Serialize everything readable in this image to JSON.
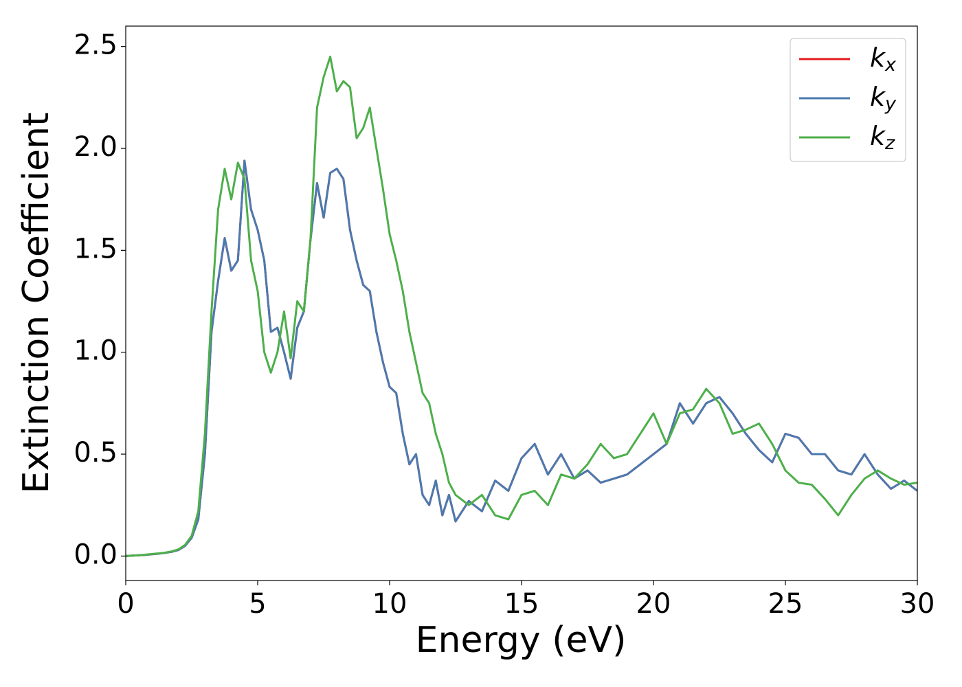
{
  "chart_data": {
    "type": "line",
    "xlabel": "Energy (eV)",
    "ylabel": "Extinction Coefficient",
    "x": [
      0,
      0.25,
      0.5,
      0.75,
      1,
      1.25,
      1.5,
      1.75,
      2,
      2.25,
      2.5,
      2.75,
      3,
      3.25,
      3.5,
      3.75,
      4,
      4.25,
      4.5,
      4.75,
      5,
      5.25,
      5.5,
      5.75,
      6,
      6.25,
      6.5,
      6.75,
      7,
      7.25,
      7.5,
      7.75,
      8,
      8.25,
      8.5,
      8.75,
      9,
      9.25,
      9.5,
      9.75,
      10,
      10.25,
      10.5,
      10.75,
      11,
      11.25,
      11.5,
      11.75,
      12,
      12.25,
      12.5,
      13,
      13.5,
      14,
      14.5,
      15,
      15.5,
      16,
      16.5,
      17,
      17.5,
      18,
      18.5,
      19,
      19.5,
      20,
      20.5,
      21,
      21.5,
      22,
      22.5,
      23,
      23.5,
      24,
      24.5,
      25,
      25.5,
      26,
      26.5,
      27,
      27.5,
      28,
      28.5,
      29,
      29.5,
      30
    ],
    "series": [
      {
        "name": "kx",
        "color": "#e41a1c",
        "values": [
          0,
          0.002,
          0.004,
          0.006,
          0.009,
          0.012,
          0.016,
          0.021,
          0.03,
          0.05,
          0.09,
          0.18,
          0.5,
          1.1,
          1.35,
          1.56,
          1.4,
          1.45,
          1.94,
          1.7,
          1.6,
          1.45,
          1.1,
          1.12,
          1.0,
          0.87,
          1.12,
          1.2,
          1.55,
          1.83,
          1.66,
          1.88,
          1.9,
          1.85,
          1.6,
          1.45,
          1.33,
          1.3,
          1.1,
          0.95,
          0.83,
          0.8,
          0.6,
          0.45,
          0.5,
          0.3,
          0.25,
          0.37,
          0.2,
          0.3,
          0.17,
          0.27,
          0.22,
          0.37,
          0.32,
          0.48,
          0.55,
          0.4,
          0.5,
          0.38,
          0.42,
          0.36,
          0.38,
          0.4,
          0.45,
          0.5,
          0.55,
          0.75,
          0.65,
          0.75,
          0.78,
          0.7,
          0.6,
          0.52,
          0.46,
          0.6,
          0.58,
          0.5,
          0.5,
          0.42,
          0.4,
          0.5,
          0.4,
          0.33,
          0.37,
          0.32
        ]
      },
      {
        "name": "ky",
        "color": "#4a7ab0",
        "values": [
          0,
          0.002,
          0.004,
          0.006,
          0.009,
          0.012,
          0.016,
          0.021,
          0.03,
          0.05,
          0.09,
          0.18,
          0.5,
          1.1,
          1.35,
          1.56,
          1.4,
          1.45,
          1.94,
          1.7,
          1.6,
          1.45,
          1.1,
          1.12,
          1.0,
          0.87,
          1.12,
          1.2,
          1.55,
          1.83,
          1.66,
          1.88,
          1.9,
          1.85,
          1.6,
          1.45,
          1.33,
          1.3,
          1.1,
          0.95,
          0.83,
          0.8,
          0.6,
          0.45,
          0.5,
          0.3,
          0.25,
          0.37,
          0.2,
          0.3,
          0.17,
          0.27,
          0.22,
          0.37,
          0.32,
          0.48,
          0.55,
          0.4,
          0.5,
          0.38,
          0.42,
          0.36,
          0.38,
          0.4,
          0.45,
          0.5,
          0.55,
          0.75,
          0.65,
          0.75,
          0.78,
          0.7,
          0.6,
          0.52,
          0.46,
          0.6,
          0.58,
          0.5,
          0.5,
          0.42,
          0.4,
          0.5,
          0.4,
          0.33,
          0.37,
          0.32
        ]
      },
      {
        "name": "kz",
        "color": "#4daf4a",
        "values": [
          0,
          0.002,
          0.004,
          0.007,
          0.01,
          0.013,
          0.017,
          0.023,
          0.033,
          0.055,
          0.1,
          0.22,
          0.6,
          1.2,
          1.7,
          1.9,
          1.75,
          1.93,
          1.85,
          1.45,
          1.3,
          1.0,
          0.9,
          1.0,
          1.2,
          0.97,
          1.25,
          1.2,
          1.55,
          2.2,
          2.35,
          2.45,
          2.28,
          2.33,
          2.3,
          2.05,
          2.1,
          2.2,
          2.0,
          1.8,
          1.58,
          1.45,
          1.3,
          1.1,
          0.95,
          0.8,
          0.75,
          0.6,
          0.5,
          0.36,
          0.3,
          0.25,
          0.3,
          0.2,
          0.18,
          0.3,
          0.32,
          0.25,
          0.4,
          0.38,
          0.45,
          0.55,
          0.48,
          0.5,
          0.6,
          0.7,
          0.55,
          0.7,
          0.72,
          0.82,
          0.75,
          0.6,
          0.62,
          0.65,
          0.55,
          0.42,
          0.36,
          0.35,
          0.28,
          0.2,
          0.3,
          0.38,
          0.42,
          0.38,
          0.35,
          0.36
        ]
      }
    ],
    "xlim": [
      0,
      30
    ],
    "xticks": [
      0,
      5,
      10,
      15,
      20,
      25,
      30
    ],
    "ylim": [
      -0.12,
      2.6
    ],
    "yticks": [
      {
        "value": 0,
        "label": "0.0"
      },
      {
        "value": 0.5,
        "label": "0.5"
      },
      {
        "value": 1,
        "label": "1.0"
      },
      {
        "value": 1.5,
        "label": "1.5"
      },
      {
        "value": 2,
        "label": "2.0"
      },
      {
        "value": 2.5,
        "label": "2.5"
      }
    ],
    "grid": false,
    "legend": "upper right"
  }
}
